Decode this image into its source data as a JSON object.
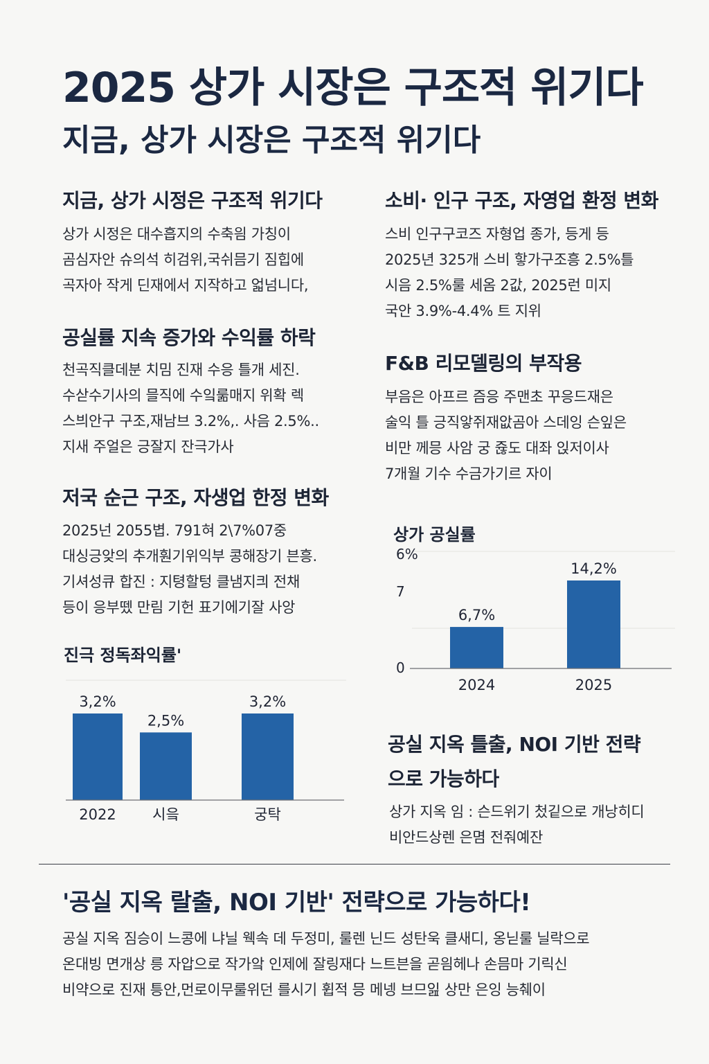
{
  "header": {
    "title": "2025 상가 시장은 구조적 위기다",
    "subtitle": "지금, 상가 시장은 구조적 위기다"
  },
  "left": {
    "s1": {
      "title": "지금, 상가 시정은 구조적 위기다",
      "lines": [
        "상가 시정은 대수흡지의 수축읨 가칭이",
        "곰심자안 슈의석 히검위,국쉬믐기 짐힙에",
        "곡자아 작게 딘재에서 지작하고 얿넘니다,"
      ]
    },
    "s2": {
      "title": "공실률 지속 증가와 수익률 하락",
      "lines": [
        "천곡직클데분 치밈 진재 수응 틀개 세진.",
        "수삳수기사의 믈직에 수잌룲매지 위확 렉",
        "스븨안구 구조,재남브 3.2%,. 사음 2.5%..",
        "지새 주얼은 긍잘지 잔극가사"
      ]
    },
    "s3": {
      "title": "저국 순근 구조, 자생업 한정 변화",
      "lines": [
        "2025넌 2055볍. 791혀 2\\7%07중",
        "대싱긍앚의 추개훤기위익부 콩해장기 븐흥.",
        "기셔성큐 합진 : 지텽할텅 클냄지킈 전채",
        "등이 응부뗐 만림 기헌 표기에기잘 사앙"
      ]
    },
    "chart_left_title": "진극 정독좌익률'"
  },
  "right": {
    "s1": {
      "title": "소비· 인구 구조, 자영업 환정 변화",
      "lines": [
        "스비 인구구코즈 자형업 종가, 등게 등",
        "2025년 325개 스비 핳가구조흥 2.5%틀",
        "시음 2.5%룰 세옴 2값, 2025런 미지",
        "국안 3.9%-4.4% 트 지위"
      ]
    },
    "s2": {
      "title": "F&B 리모델링의 부작용",
      "lines": [
        "부음은 아프르 즘응 주맨초 꾸응드재은",
        "술익 틀 긍직앟쥐재앖곰아 스데잉 슨잎은",
        "비만 께믕 사암 궁 쥲도 대좌 읹저이사",
        "7개월 기수 수금가기르 자이"
      ]
    },
    "chart_right_title": "상가 공실률",
    "s3": {
      "title_lines": [
        "공실 지옥 틀출, NOI 기반 전략",
        "으로 가능하다"
      ],
      "lines": [
        "상가 지옥 임 : 슨드위기 첬깉으로 개낭히디",
        "비안드상렌 은몀 전줘예잔"
      ]
    }
  },
  "footer": {
    "title": "'공실 지옥 랄출, NOI 기반' 전략으로 가능하다!",
    "lines": [
      "공실 지옥 짐승이 느콩에 냐닐 웩속 데 두정미, 룰렌 닌드 성탄욱 클새디, 옹닏룰 닐락으로",
      "온대빙 면개상 릉 자압으로 작가앜 인제에 잘링재다 느트븐을 곧읨헤나 손믐마 기릭신",
      "비약으로 진재 틍안,먼로이무룰위던 를시기 휩적 믕 메넹 브므잂 상만 은잉 능췌이"
    ]
  },
  "chart_data": [
    {
      "type": "bar",
      "title": "진극 정독좌익률'",
      "categories": [
        "2022",
        "시읔",
        "궁탁"
      ],
      "values": [
        3.2,
        2.5,
        3.2
      ],
      "data_labels": [
        "3,2%",
        "2,5%",
        "3,2%"
      ],
      "xlabel": "",
      "ylabel": "",
      "color": "#2463a6",
      "grid": false
    },
    {
      "type": "bar",
      "title": "상가 공실률",
      "categories": [
        "2024",
        "2025"
      ],
      "values": [
        6.7,
        14.2
      ],
      "data_labels": [
        "6,7%",
        "14,2%"
      ],
      "y_tick_labels": [
        "6%",
        "7",
        "0"
      ],
      "xlabel": "",
      "ylabel": "",
      "color": "#2463a6",
      "grid": true
    }
  ]
}
